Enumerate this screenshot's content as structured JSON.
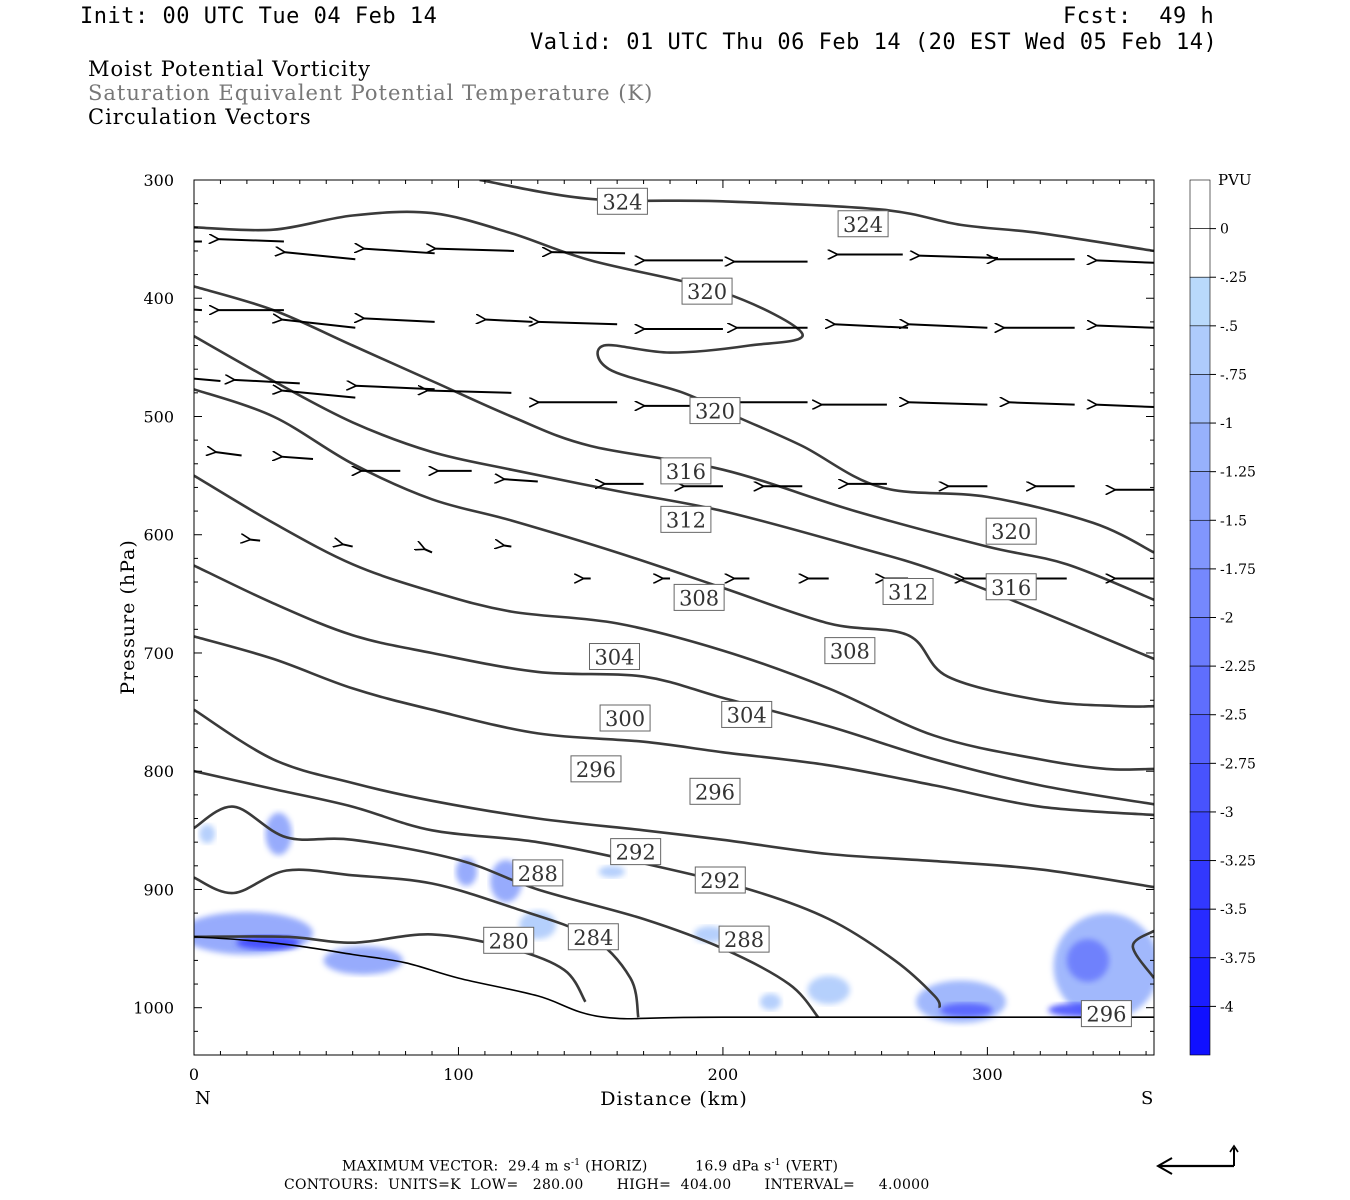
{
  "header": {
    "init": "Init: 00 UTC Tue 04 Feb 14",
    "fcst_label": "Fcst:",
    "fcst_value": "49 h",
    "valid": "Valid: 01 UTC Thu 06 Feb 14 (20 EST Wed 05 Feb 14)"
  },
  "titles": {
    "line1": "Moist Potential Vorticity",
    "line2": "Saturation Equivalent Potential Temperature (K)",
    "line3": "Circulation Vectors"
  },
  "footer": {
    "max_vector_label": "MAXIMUM VECTOR:",
    "horiz_value": "29.4 m s",
    "horiz_exp": "-1",
    "horiz_tag": "(HORIZ)",
    "vert_value": "16.9 dPa s",
    "vert_exp": "-1",
    "vert_tag": "(VERT)",
    "contours_line": "CONTOURS:  UNITS=K  LOW=   280.00       HIGH=  404.00       INTERVAL=     4.0000"
  },
  "colors": {
    "contour": "#3a3a3a",
    "frame": "#000000",
    "pvu_light": "#bfe3fb",
    "pvu_dark": "#1010ff"
  },
  "chart_data": {
    "type": "contour",
    "xlabel": "Distance (km)",
    "ylabel": "Pressure (hPa)",
    "xlim": [
      0,
      363
    ],
    "ylim": [
      1040,
      300
    ],
    "xticks": [
      0,
      100,
      200,
      300
    ],
    "yticks": [
      300,
      400,
      500,
      600,
      700,
      800,
      900,
      1000
    ],
    "x_end_labels": {
      "left": "N",
      "right": "S"
    },
    "colorbar": {
      "title": "PVU",
      "labels": [
        "0",
        "-.25",
        "-.5",
        "-.75",
        "-1",
        "-1.25",
        "-1.5",
        "-1.75",
        "-2",
        "-2.25",
        "-2.5",
        "-2.75",
        "-3",
        "-3.25",
        "-3.5",
        "-3.75",
        "-4"
      ],
      "levels": [
        0,
        -0.25,
        -0.5,
        -0.75,
        -1,
        -1.25,
        -1.5,
        -1.75,
        -2,
        -2.25,
        -2.5,
        -2.75,
        -3,
        -3.25,
        -3.5,
        -3.75,
        -4
      ]
    },
    "contour_interval": 4,
    "contours": [
      {
        "label": "324",
        "points": [
          [
            108,
            300
          ],
          [
            150,
            316
          ],
          [
            200,
            318
          ],
          [
            260,
            325
          ],
          [
            290,
            338
          ],
          [
            320,
            345
          ],
          [
            363,
            360
          ]
        ]
      },
      {
        "label": "320",
        "points": [
          [
            0,
            340
          ],
          [
            30,
            342
          ],
          [
            60,
            330
          ],
          [
            90,
            328
          ],
          [
            120,
            345
          ],
          [
            150,
            368
          ],
          [
            200,
            395
          ],
          [
            230,
            430
          ],
          [
            210,
            440
          ],
          [
            180,
            446
          ],
          [
            155,
            440
          ],
          [
            157,
            460
          ],
          [
            185,
            480
          ],
          [
            205,
            500
          ],
          [
            230,
            525
          ],
          [
            260,
            560
          ],
          [
            300,
            568
          ],
          [
            340,
            590
          ],
          [
            363,
            615
          ]
        ]
      },
      {
        "label": "316",
        "points": [
          [
            0,
            390
          ],
          [
            30,
            410
          ],
          [
            60,
            440
          ],
          [
            90,
            470
          ],
          [
            120,
            500
          ],
          [
            150,
            525
          ],
          [
            200,
            545
          ],
          [
            250,
            580
          ],
          [
            300,
            610
          ],
          [
            330,
            625
          ],
          [
            363,
            655
          ]
        ]
      },
      {
        "label": "312",
        "points": [
          [
            0,
            432
          ],
          [
            30,
            470
          ],
          [
            60,
            505
          ],
          [
            90,
            530
          ],
          [
            120,
            545
          ],
          [
            160,
            563
          ],
          [
            200,
            580
          ],
          [
            250,
            610
          ],
          [
            280,
            630
          ],
          [
            320,
            665
          ],
          [
            363,
            705
          ]
        ]
      },
      {
        "label": "308",
        "points": [
          [
            0,
            477
          ],
          [
            30,
            500
          ],
          [
            60,
            540
          ],
          [
            90,
            570
          ],
          [
            120,
            588
          ],
          [
            160,
            615
          ],
          [
            200,
            645
          ],
          [
            240,
            675
          ],
          [
            270,
            685
          ],
          [
            285,
            720
          ],
          [
            320,
            740
          ],
          [
            350,
            745
          ],
          [
            363,
            745
          ]
        ]
      },
      {
        "label": "304",
        "points": [
          [
            0,
            550
          ],
          [
            30,
            590
          ],
          [
            60,
            625
          ],
          [
            90,
            648
          ],
          [
            120,
            665
          ],
          [
            160,
            675
          ],
          [
            200,
            698
          ],
          [
            240,
            730
          ],
          [
            280,
            770
          ],
          [
            320,
            790
          ],
          [
            345,
            798
          ],
          [
            363,
            798
          ]
        ]
      },
      {
        "label": "300",
        "points": [
          [
            0,
            626
          ],
          [
            30,
            658
          ],
          [
            60,
            685
          ],
          [
            90,
            700
          ],
          [
            130,
            716
          ],
          [
            170,
            720
          ],
          [
            200,
            738
          ],
          [
            240,
            762
          ],
          [
            280,
            790
          ],
          [
            320,
            812
          ],
          [
            363,
            828
          ]
        ]
      },
      {
        "label": "296",
        "points": [
          [
            0,
            686
          ],
          [
            30,
            705
          ],
          [
            60,
            730
          ],
          [
            90,
            748
          ],
          [
            130,
            768
          ],
          [
            170,
            775
          ],
          [
            200,
            784
          ],
          [
            240,
            795
          ],
          [
            280,
            812
          ],
          [
            320,
            830
          ],
          [
            363,
            837
          ]
        ]
      },
      {
        "label": "296b",
        "points": [
          [
            0,
            748
          ],
          [
            30,
            790
          ],
          [
            60,
            810
          ],
          [
            90,
            825
          ],
          [
            130,
            840
          ],
          [
            170,
            850
          ],
          [
            200,
            858
          ],
          [
            240,
            870
          ],
          [
            280,
            876
          ],
          [
            320,
            883
          ],
          [
            363,
            898
          ]
        ]
      },
      {
        "label": "292",
        "points": [
          [
            0,
            800
          ],
          [
            30,
            815
          ],
          [
            60,
            830
          ],
          [
            90,
            850
          ],
          [
            130,
            860
          ],
          [
            170,
            878
          ],
          [
            210,
            900
          ],
          [
            240,
            925
          ],
          [
            265,
            960
          ],
          [
            280,
            990
          ],
          [
            282,
            1000
          ]
        ]
      },
      {
        "label": "288",
        "points": [
          [
            0,
            848
          ],
          [
            15,
            830
          ],
          [
            35,
            856
          ],
          [
            60,
            858
          ],
          [
            100,
            875
          ],
          [
            130,
            900
          ],
          [
            170,
            925
          ],
          [
            200,
            950
          ],
          [
            225,
            980
          ],
          [
            236,
            1008
          ]
        ]
      },
      {
        "label": "284",
        "points": [
          [
            0,
            890
          ],
          [
            15,
            903
          ],
          [
            35,
            884
          ],
          [
            60,
            888
          ],
          [
            90,
            895
          ],
          [
            120,
            915
          ],
          [
            150,
            940
          ],
          [
            165,
            975
          ],
          [
            168,
            1008
          ]
        ]
      },
      {
        "label": "280",
        "points": [
          [
            0,
            940
          ],
          [
            35,
            940
          ],
          [
            60,
            945
          ],
          [
            90,
            938
          ],
          [
            120,
            950
          ],
          [
            140,
            968
          ],
          [
            148,
            995
          ]
        ]
      },
      {
        "label": "296c",
        "points": [
          [
            363,
            935
          ],
          [
            355,
            948
          ],
          [
            363,
            975
          ]
        ]
      }
    ],
    "contour_labels": [
      {
        "text": "324",
        "x": 162,
        "y": 318
      },
      {
        "text": "324",
        "x": 253,
        "y": 337
      },
      {
        "text": "320",
        "x": 194,
        "y": 394
      },
      {
        "text": "320",
        "x": 197,
        "y": 495
      },
      {
        "text": "316",
        "x": 186,
        "y": 546
      },
      {
        "text": "312",
        "x": 186,
        "y": 587
      },
      {
        "text": "320",
        "x": 309,
        "y": 597
      },
      {
        "text": "308",
        "x": 191,
        "y": 653
      },
      {
        "text": "312",
        "x": 270,
        "y": 648
      },
      {
        "text": "316",
        "x": 309,
        "y": 644
      },
      {
        "text": "304",
        "x": 159,
        "y": 703
      },
      {
        "text": "308",
        "x": 248,
        "y": 698
      },
      {
        "text": "300",
        "x": 163,
        "y": 755
      },
      {
        "text": "304",
        "x": 209,
        "y": 752
      },
      {
        "text": "296",
        "x": 152,
        "y": 798
      },
      {
        "text": "296",
        "x": 197,
        "y": 817
      },
      {
        "text": "292",
        "x": 167,
        "y": 868
      },
      {
        "text": "292",
        "x": 199,
        "y": 892
      },
      {
        "text": "288",
        "x": 130,
        "y": 886
      },
      {
        "text": "280",
        "x": 119,
        "y": 943
      },
      {
        "text": "284",
        "x": 151,
        "y": 940
      },
      {
        "text": "288",
        "x": 208,
        "y": 942
      },
      {
        "text": "296",
        "x": 345,
        "y": 1005
      }
    ],
    "vectors": [
      [
        3,
        352,
        -25,
        0
      ],
      [
        34,
        352,
        -25,
        -2
      ],
      [
        61,
        367,
        -27,
        -6
      ],
      [
        91,
        362,
        -27,
        -4
      ],
      [
        121,
        360,
        -30,
        -2
      ],
      [
        163,
        362,
        -28,
        -1
      ],
      [
        200,
        368,
        -30,
        0
      ],
      [
        232,
        369,
        -28,
        0
      ],
      [
        268,
        363,
        -25,
        0
      ],
      [
        304,
        366,
        -30,
        -2
      ],
      [
        333,
        367,
        -30,
        0
      ],
      [
        363,
        370,
        -22,
        -2
      ],
      [
        3,
        410,
        -25,
        -3
      ],
      [
        34,
        410,
        -25,
        0
      ],
      [
        61,
        425,
        -28,
        -7
      ],
      [
        91,
        420,
        -27,
        -3
      ],
      [
        128,
        420,
        -18,
        -2
      ],
      [
        160,
        422,
        -30,
        -2
      ],
      [
        200,
        426,
        -30,
        0
      ],
      [
        232,
        425,
        -27,
        0
      ],
      [
        270,
        425,
        -28,
        -3
      ],
      [
        300,
        425,
        -30,
        -3
      ],
      [
        333,
        425,
        -27,
        0
      ],
      [
        363,
        425,
        -22,
        -2
      ],
      [
        10,
        470,
        -15,
        -3
      ],
      [
        40,
        472,
        -25,
        -3
      ],
      [
        61,
        484,
        -28,
        -6
      ],
      [
        91,
        477,
        -30,
        -3
      ],
      [
        120,
        480,
        -32,
        -2
      ],
      [
        160,
        488,
        -30,
        0
      ],
      [
        200,
        491,
        -30,
        0
      ],
      [
        232,
        488,
        -27,
        0
      ],
      [
        262,
        490,
        -25,
        0
      ],
      [
        300,
        490,
        -30,
        -2
      ],
      [
        333,
        490,
        -25,
        -2
      ],
      [
        363,
        492,
        -22,
        -2
      ],
      [
        18,
        533,
        -10,
        -3
      ],
      [
        45,
        536,
        -12,
        -2
      ],
      [
        78,
        546,
        -15,
        0
      ],
      [
        105,
        546,
        -13,
        0
      ],
      [
        130,
        555,
        -13,
        -2
      ],
      [
        170,
        557,
        -15,
        0
      ],
      [
        200,
        559,
        -15,
        0
      ],
      [
        230,
        559,
        -15,
        0
      ],
      [
        262,
        557,
        -15,
        0
      ],
      [
        300,
        559,
        -15,
        0
      ],
      [
        333,
        559,
        -15,
        0
      ],
      [
        363,
        562,
        -15,
        0
      ],
      [
        25,
        605,
        -4,
        -1
      ],
      [
        60,
        610,
        -4,
        -2
      ],
      [
        90,
        615,
        -3,
        -3
      ],
      [
        120,
        610,
        -3,
        -1
      ],
      [
        150,
        637,
        -3,
        0
      ],
      [
        180,
        637,
        -3,
        0
      ],
      [
        210,
        637,
        -6,
        0
      ],
      [
        240,
        637,
        -8,
        0
      ],
      [
        270,
        637,
        -9,
        0
      ],
      [
        300,
        637,
        -9,
        0
      ],
      [
        330,
        637,
        -12,
        0
      ],
      [
        363,
        637,
        -15,
        0
      ]
    ],
    "pv_areas": [
      {
        "x": 32,
        "y": 853,
        "rx": 5,
        "ry": 18,
        "level": -1.25
      },
      {
        "x": 5,
        "y": 853,
        "rx": 3,
        "ry": 8,
        "level": -0.5
      },
      {
        "x": 20,
        "y": 937,
        "rx": 25,
        "ry": 18,
        "level": -1.25
      },
      {
        "x": 28,
        "y": 945,
        "rx": 12,
        "ry": 6,
        "level": -3.0
      },
      {
        "x": 64,
        "y": 960,
        "rx": 15,
        "ry": 12,
        "level": -1.25
      },
      {
        "x": 103,
        "y": 885,
        "rx": 4,
        "ry": 12,
        "level": -1.25
      },
      {
        "x": 118,
        "y": 893,
        "rx": 6,
        "ry": 18,
        "level": -1.25
      },
      {
        "x": 130,
        "y": 930,
        "rx": 7,
        "ry": 12,
        "level": -0.5
      },
      {
        "x": 158,
        "y": 885,
        "rx": 5,
        "ry": 5,
        "level": -0.5
      },
      {
        "x": 195,
        "y": 938,
        "rx": 6,
        "ry": 7,
        "level": -0.5
      },
      {
        "x": 240,
        "y": 985,
        "rx": 8,
        "ry": 12,
        "level": -0.5
      },
      {
        "x": 218,
        "y": 995,
        "rx": 4,
        "ry": 7,
        "level": -0.5
      },
      {
        "x": 290,
        "y": 995,
        "rx": 17,
        "ry": 18,
        "level": -1.0
      },
      {
        "x": 292,
        "y": 1002,
        "rx": 10,
        "ry": 6,
        "level": -2.5
      },
      {
        "x": 345,
        "y": 965,
        "rx": 20,
        "ry": 45,
        "level": -1.0
      },
      {
        "x": 338,
        "y": 960,
        "rx": 8,
        "ry": 18,
        "level": -2.0
      },
      {
        "x": 335,
        "y": 1002,
        "rx": 12,
        "ry": 6,
        "level": -2.75
      }
    ],
    "surface": [
      [
        0,
        940
      ],
      [
        20,
        943
      ],
      [
        40,
        948
      ],
      [
        60,
        955
      ],
      [
        80,
        962
      ],
      [
        100,
        975
      ],
      [
        130,
        990
      ],
      [
        155,
        1008
      ],
      [
        200,
        1008
      ],
      [
        363,
        1008
      ]
    ]
  }
}
